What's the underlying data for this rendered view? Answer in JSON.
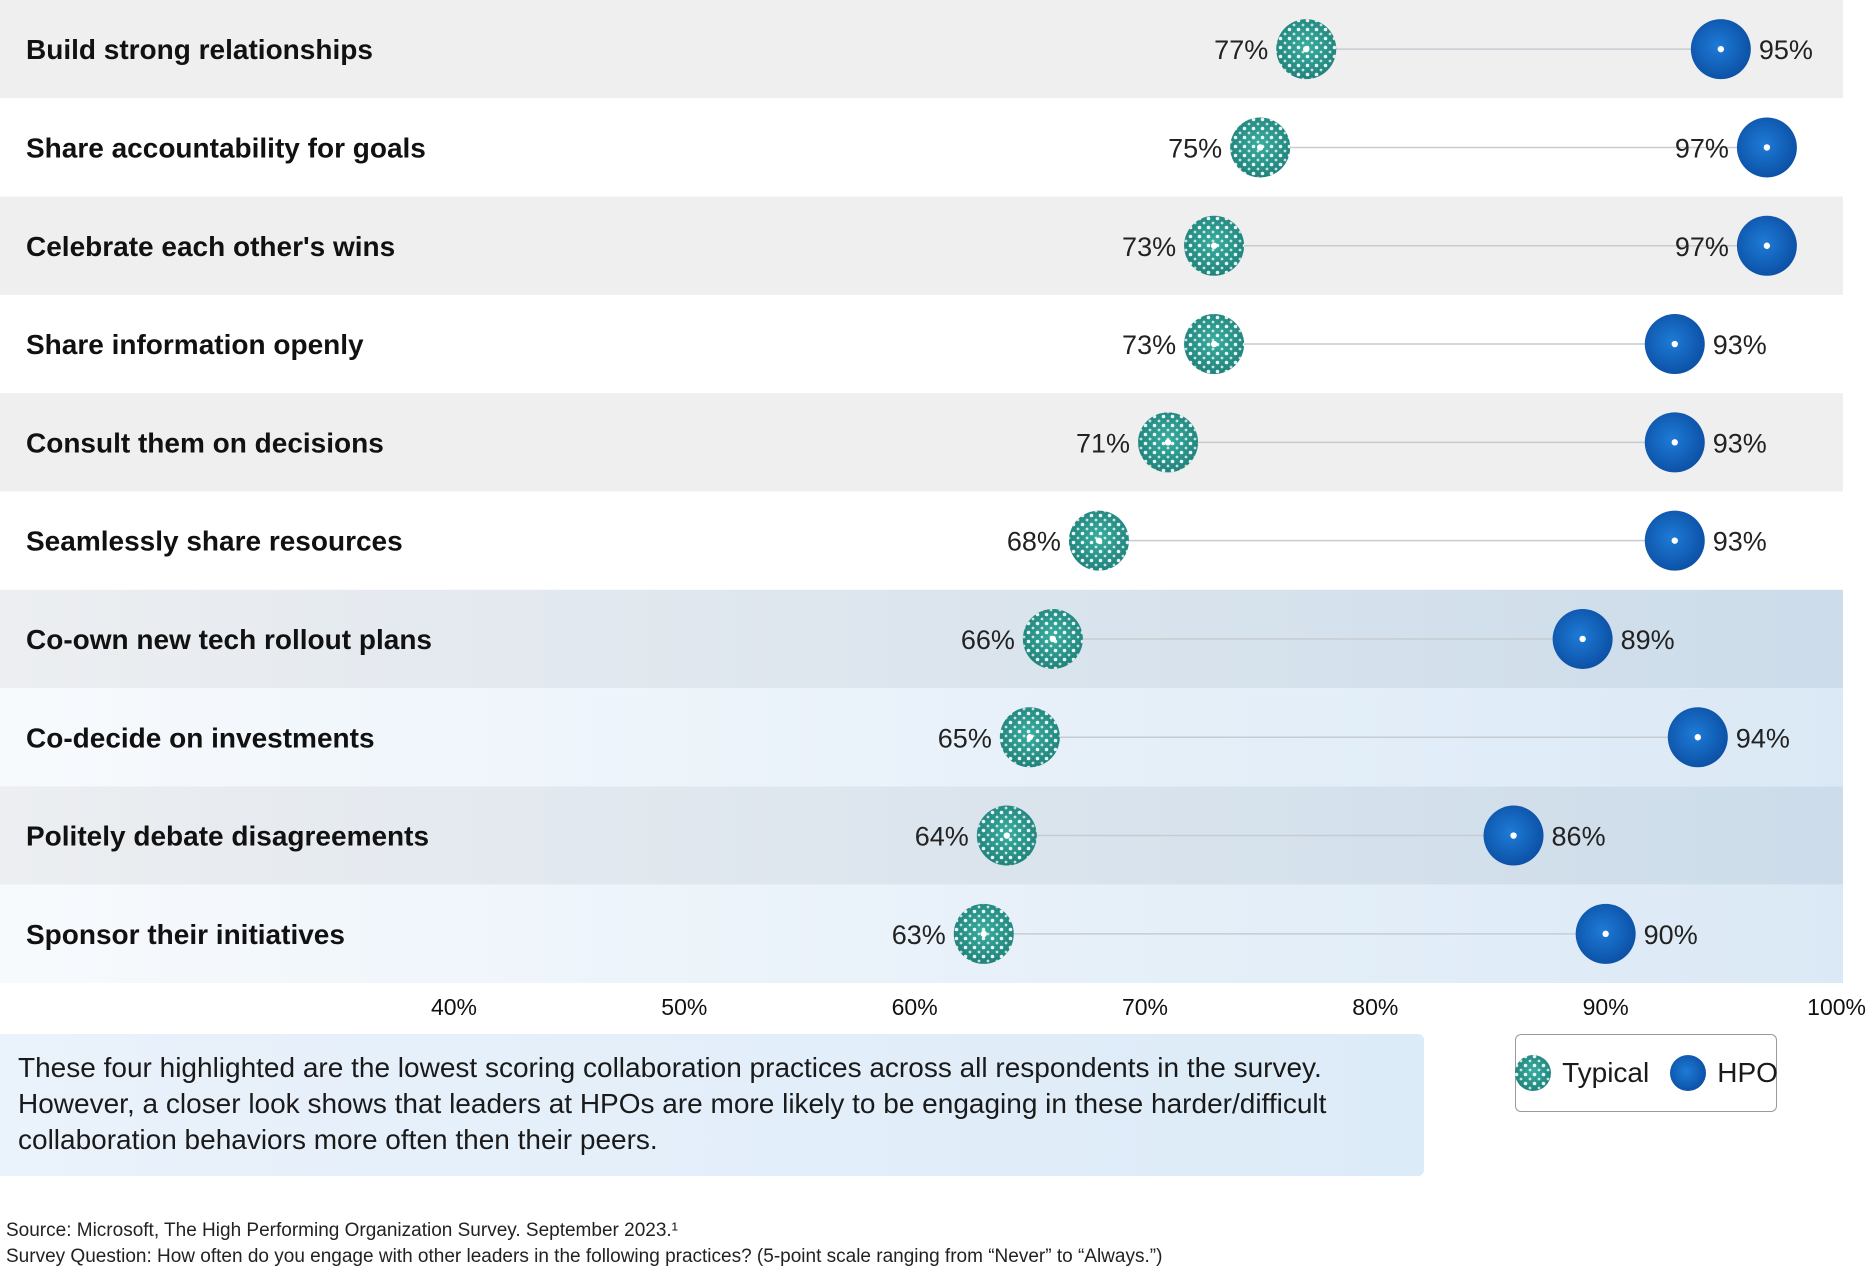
{
  "chart_data": {
    "type": "dumbbell",
    "categories": [
      "Build strong relationships",
      "Share accountability for goals",
      "Celebrate each other's wins",
      "Share information openly",
      "Consult them on decisions",
      "Seamlessly share resources",
      "Co-own new tech rollout plans",
      "Co-decide on investments",
      "Politely debate disagreements",
      "Sponsor their initiatives"
    ],
    "series": [
      {
        "name": "Typical",
        "values": [
          77,
          75,
          73,
          73,
          71,
          68,
          66,
          65,
          64,
          63
        ],
        "color": "#2a9d8f"
      },
      {
        "name": "HPO",
        "values": [
          95,
          97,
          97,
          93,
          93,
          93,
          89,
          94,
          86,
          90
        ],
        "color": "#1565c0"
      }
    ],
    "value_labels": {
      "Typical": [
        "77%",
        "75%",
        "73%",
        "73%",
        "71%",
        "68%",
        "66%",
        "65%",
        "64%",
        "63%"
      ],
      "HPO": [
        "95%",
        "97%",
        "97%",
        "93%",
        "93%",
        "93%",
        "89%",
        "94%",
        "86%",
        "90%"
      ]
    },
    "highlighted_categories": [
      "Co-own new tech rollout plans",
      "Co-decide on investments",
      "Politely debate disagreements",
      "Sponsor their initiatives"
    ],
    "xlim": [
      40,
      100
    ],
    "x_ticks": [
      40,
      50,
      60,
      70,
      80,
      90,
      100
    ],
    "x_tick_labels": [
      "40%",
      "50%",
      "60%",
      "70%",
      "80%",
      "90%",
      "100%"
    ],
    "grid": false,
    "legend_position": "bottom-right",
    "colors": {
      "typical": "#2a9d8f",
      "hpo": "#1565c0",
      "row_gray": "#efeff0",
      "highlight_light": "#e4eef8",
      "highlight_dark": "#d0dfeb"
    }
  },
  "note": {
    "text": "These four highlighted are the lowest scoring collaboration practices across all respondents in the survey. However, a closer look shows that leaders at HPOs are more likely to be engaging in these harder/difficult collaboration behaviors more often then their peers."
  },
  "legend": {
    "typical_label": "Typical",
    "typical_icon": "dotted-teal-circle-icon",
    "hpo_label": "HPO",
    "hpo_icon": "blue-circle-icon"
  },
  "footer": {
    "source": "Source: Microsoft, The High Performing Organization Survey. September 2023.¹",
    "question": "Survey Question: How often do you engage with other leaders in the following practices? (5-point scale ranging from “Never” to “Always.”)"
  }
}
